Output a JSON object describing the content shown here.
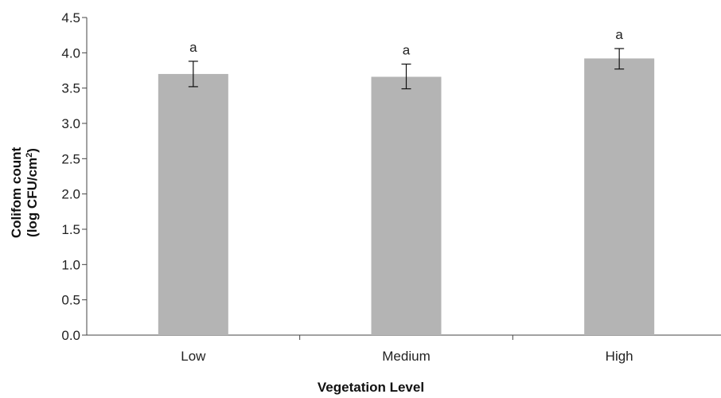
{
  "chart_data": {
    "type": "bar",
    "categories": [
      "Low",
      "Medium",
      "High"
    ],
    "values": [
      3.7,
      3.66,
      3.92
    ],
    "error_low": [
      3.52,
      3.49,
      3.77
    ],
    "error_high": [
      3.88,
      3.84,
      4.06
    ],
    "significance_labels": [
      "a",
      "a",
      "a"
    ],
    "xlabel": "Vegetation Level",
    "ylabel_line1": "Colifom count",
    "ylabel_line2_prefix": "(log CFU/cm",
    "ylabel_line2_sup": "2",
    "ylabel_line2_suffix": ")",
    "ylim": [
      0,
      4.5
    ],
    "yticks": [
      "0.0",
      "0.5",
      "1.0",
      "1.5",
      "2.0",
      "2.5",
      "3.0",
      "3.5",
      "4.0",
      "4.5"
    ],
    "bar_color": "#b4b4b4",
    "grid": false,
    "legend": "none"
  }
}
